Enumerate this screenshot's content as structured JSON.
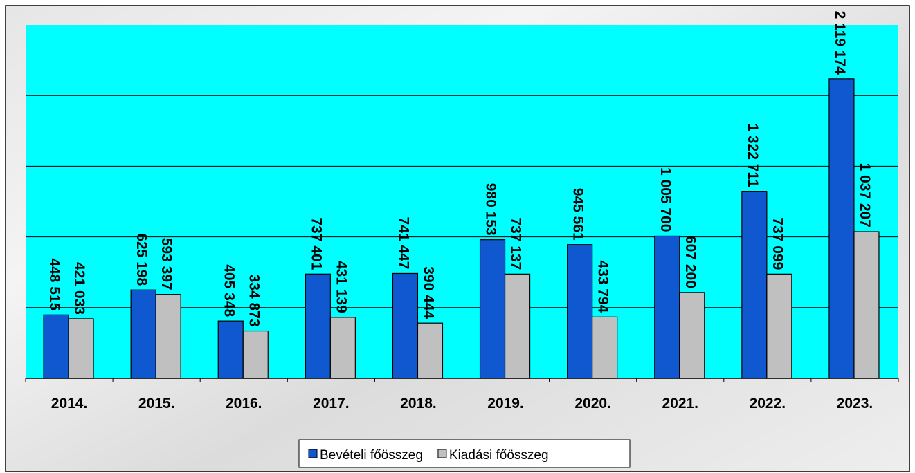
{
  "chart_data": {
    "type": "bar",
    "categories": [
      "2014.",
      "2015.",
      "2016.",
      "2017.",
      "2018.",
      "2019.",
      "2020.",
      "2021.",
      "2022.",
      "2023."
    ],
    "series": [
      {
        "name": "Bevételi főösszeg",
        "color": "#1058d0",
        "values": [
          448515,
          625198,
          405348,
          737401,
          741447,
          980153,
          945561,
          1005700,
          1322711,
          2119174
        ],
        "value_labels": [
          "448 515",
          "625 198",
          "405 348",
          "737 401",
          "741 447",
          "980 153",
          "945 561",
          "1 005 700",
          "1 322 711",
          "2 119 174"
        ]
      },
      {
        "name": "Kiadási főösszeg",
        "color": "#c0c0c0",
        "values": [
          421033,
          593397,
          334873,
          431139,
          390444,
          737137,
          433794,
          607200,
          737099,
          1037207
        ],
        "value_labels": [
          "421 033",
          "593 397",
          "334 873",
          "431 139",
          "390 444",
          "737 137",
          "433 794",
          "607 200",
          "737 099",
          "1 037 207"
        ]
      }
    ],
    "ylim": [
      0,
      2500000
    ],
    "yticks": [
      0,
      500000,
      1000000,
      1500000,
      2000000,
      2500000
    ],
    "grid": true,
    "legend": "bottom"
  }
}
